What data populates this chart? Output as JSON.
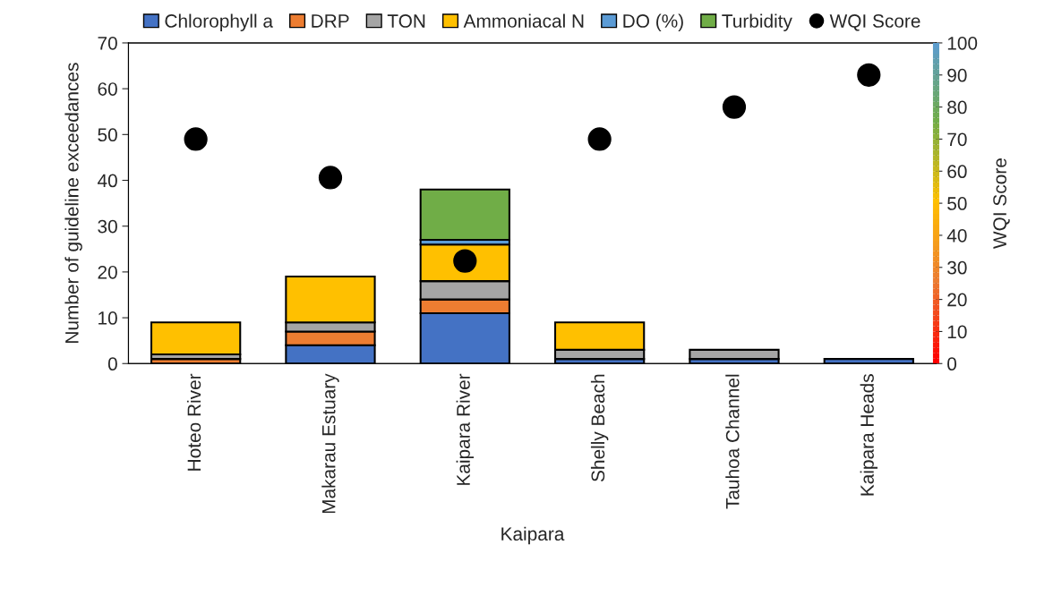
{
  "chart_data": {
    "type": "bar",
    "stacked": true,
    "xlabel": "Kaipara",
    "ylabel": "Number of guideline exceedances",
    "y2label": "WQI Score",
    "categories": [
      "Hoteo River",
      "Makarau Estuary",
      "Kaipara River",
      "Shelly Beach",
      "Tauhoa Channel",
      "Kaipara Heads"
    ],
    "series": [
      {
        "name": "Chlorophyll a",
        "color": "#4472c4",
        "values": [
          0,
          4,
          11,
          1,
          1,
          1
        ]
      },
      {
        "name": "DRP",
        "color": "#ed7d31",
        "values": [
          1,
          3,
          3,
          0,
          0,
          0
        ]
      },
      {
        "name": "TON",
        "color": "#a5a5a5",
        "values": [
          1,
          2,
          4,
          2,
          2,
          0
        ]
      },
      {
        "name": "Ammoniacal N",
        "color": "#ffc000",
        "values": [
          7,
          10,
          8,
          6,
          0,
          0
        ]
      },
      {
        "name": "DO (%)",
        "color": "#5b9bd5",
        "values": [
          0,
          0,
          1,
          0,
          0,
          0
        ]
      },
      {
        "name": "Turbidity",
        "color": "#70ad47",
        "values": [
          0,
          0,
          11,
          0,
          0,
          0
        ]
      },
      {
        "name": "WQI Score",
        "type": "scatter",
        "axis": "y2",
        "color": "#000000",
        "marker": "circle",
        "values": [
          70,
          58,
          32,
          70,
          80,
          90
        ]
      }
    ],
    "ylim": [
      0,
      70
    ],
    "yticks": [
      0,
      10,
      20,
      30,
      40,
      50,
      60,
      70
    ],
    "y2lim": [
      0,
      100
    ],
    "y2ticks": [
      0,
      10,
      20,
      30,
      40,
      50,
      60,
      70,
      80,
      90,
      100
    ],
    "grid": false,
    "legend": "top"
  }
}
